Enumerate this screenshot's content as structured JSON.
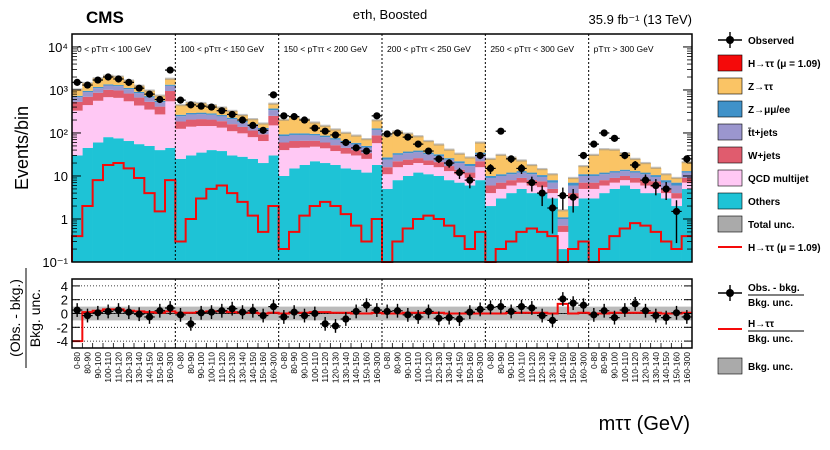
{
  "chart_data": {
    "type": "bar",
    "stacked": true,
    "header": {
      "experiment": "CMS",
      "channel": "eτh, Boosted",
      "luminosity": "35.9 fb⁻¹ (13 TeV)"
    },
    "x_axis_label": "mττ (GeV)",
    "y_axis_label_top": "Events/bin",
    "y_axis_label_bottom_numerator": "(Obs. - bkg.)",
    "y_axis_label_bottom_denominator": "Bkg. unc.",
    "y_scale_top": "log",
    "ylim_top": [
      0.1,
      20000
    ],
    "ylim_bottom": [
      -5,
      5
    ],
    "y_ticks_top": [
      "10⁻¹",
      "1",
      "10",
      "10²",
      "10³",
      "10⁴"
    ],
    "y_ticks_bottom": [
      "-4",
      "-2",
      "0",
      "2",
      "4"
    ],
    "regions": [
      {
        "label": "0 < pTττ < 100 GeV",
        "categories": [
          "0-80",
          "80-90",
          "90-100",
          "100-110",
          "110-120",
          "120-130",
          "130-140",
          "140-150",
          "150-160",
          "160-300"
        ]
      },
      {
        "label": "100 < pTττ < 150 GeV",
        "categories": [
          "0-80",
          "80-90",
          "90-100",
          "100-110",
          "110-120",
          "120-130",
          "130-140",
          "140-150",
          "150-160",
          "160-300"
        ]
      },
      {
        "label": "150 < pTττ < 200 GeV",
        "categories": [
          "0-80",
          "80-90",
          "90-100",
          "100-110",
          "110-120",
          "120-130",
          "130-140",
          "140-150",
          "150-160",
          "160-300"
        ]
      },
      {
        "label": "200 < pTττ < 250 GeV",
        "categories": [
          "0-80",
          "80-90",
          "90-100",
          "100-110",
          "110-120",
          "120-130",
          "130-140",
          "140-150",
          "150-160",
          "160-300"
        ]
      },
      {
        "label": "250 < pTττ < 300 GeV",
        "categories": [
          "0-80",
          "80-90",
          "90-100",
          "100-110",
          "110-120",
          "120-130",
          "130-140",
          "140-150",
          "150-160",
          "160-300"
        ]
      },
      {
        "label": "pTττ > 300 GeV",
        "categories": [
          "0-80",
          "80-90",
          "90-100",
          "100-110",
          "110-120",
          "120-130",
          "130-140",
          "140-150",
          "150-160",
          "160-300"
        ]
      }
    ],
    "series": [
      {
        "name": "Others",
        "color": "#1ec3d6",
        "values": [
          30,
          45,
          60,
          80,
          75,
          65,
          55,
          50,
          40,
          45,
          25,
          30,
          35,
          40,
          38,
          30,
          28,
          25,
          20,
          30,
          10,
          15,
          18,
          22,
          20,
          18,
          15,
          14,
          12,
          18,
          5,
          8,
          10,
          12,
          11,
          10,
          8,
          7,
          6,
          8,
          2,
          3,
          4,
          5,
          4,
          4,
          3,
          0.2,
          2,
          3,
          3,
          4,
          5,
          6,
          5,
          4,
          4,
          3,
          2,
          5
        ]
      },
      {
        "name": "QCD multijet",
        "color": "#ffc8f4",
        "values": [
          300,
          400,
          500,
          600,
          580,
          480,
          380,
          300,
          230,
          500,
          100,
          110,
          110,
          105,
          95,
          80,
          70,
          55,
          45,
          120,
          30,
          30,
          28,
          26,
          24,
          20,
          18,
          16,
          13,
          40,
          6,
          8,
          8,
          8,
          7,
          6,
          5,
          4,
          3,
          8,
          2,
          2,
          2,
          2,
          2,
          1.5,
          1,
          0.3,
          1,
          2,
          2,
          2,
          2,
          2,
          2,
          2,
          1.5,
          1,
          1,
          2
        ]
      },
      {
        "name": "W+jets",
        "color": "#e05c6e",
        "values": [
          200,
          250,
          300,
          330,
          320,
          280,
          230,
          180,
          140,
          400,
          60,
          65,
          65,
          60,
          55,
          50,
          40,
          34,
          28,
          100,
          20,
          20,
          20,
          18,
          16,
          14,
          12,
          10,
          9,
          30,
          5,
          6,
          6,
          6,
          5,
          5,
          4,
          3,
          3,
          6,
          2,
          2,
          2,
          2,
          2,
          2,
          1,
          0.2,
          1,
          2,
          2,
          2,
          2,
          2,
          2,
          2,
          2,
          1,
          1,
          2
        ]
      },
      {
        "name": "t̄t+jets",
        "color": "#9b96ce",
        "values": [
          150,
          200,
          240,
          260,
          250,
          220,
          180,
          140,
          110,
          300,
          60,
          65,
          65,
          60,
          55,
          50,
          40,
          34,
          28,
          90,
          25,
          25,
          24,
          22,
          20,
          18,
          16,
          14,
          12,
          30,
          8,
          9,
          10,
          10,
          9,
          8,
          7,
          6,
          5,
          10,
          3,
          3,
          3,
          3,
          3,
          2,
          2,
          0.3,
          2,
          3,
          3,
          3,
          3,
          3,
          3,
          3,
          2,
          2,
          2,
          3
        ]
      },
      {
        "name": "Z→μμ/ee",
        "color": "#4092c9",
        "values": [
          50,
          60,
          70,
          80,
          75,
          70,
          60,
          50,
          40,
          80,
          20,
          22,
          22,
          20,
          18,
          16,
          14,
          12,
          10,
          30,
          8,
          8,
          8,
          7,
          7,
          6,
          5,
          5,
          4,
          10,
          3,
          3,
          3,
          3,
          3,
          3,
          2,
          2,
          2,
          3,
          1,
          1,
          1,
          1,
          1,
          1,
          1,
          0.1,
          1,
          1,
          1,
          1,
          1,
          1,
          1,
          1,
          1,
          1,
          1,
          1
        ]
      },
      {
        "name": "Z→ττ",
        "color": "#fac465",
        "values": [
          300,
          500,
          700,
          800,
          750,
          550,
          350,
          250,
          180,
          500,
          180,
          220,
          200,
          160,
          130,
          100,
          70,
          50,
          35,
          110,
          110,
          140,
          110,
          80,
          60,
          45,
          35,
          28,
          22,
          70,
          60,
          75,
          60,
          45,
          30,
          22,
          15,
          11,
          8,
          25,
          15,
          20,
          15,
          10,
          6,
          4,
          3,
          0.5,
          2,
          6,
          20,
          30,
          28,
          20,
          12,
          8,
          5,
          3,
          2,
          8
        ]
      }
    ],
    "signal": {
      "name": "H→ττ (μ = 1.09)",
      "color": "#f50a0a",
      "values": [
        0.4,
        2,
        8,
        18,
        20,
        15,
        9,
        4,
        1.5,
        8,
        0.3,
        1,
        3,
        5,
        6,
        4,
        2.5,
        1.2,
        0.5,
        2,
        0.2,
        0.5,
        1.2,
        2,
        2.5,
        2,
        1.3,
        0.7,
        0.3,
        1,
        0.1,
        0.3,
        0.6,
        1,
        1.2,
        1,
        0.7,
        0.4,
        0.2,
        0.5,
        0.1,
        0.2,
        0.3,
        0.5,
        0.6,
        0.5,
        0.4,
        0.1,
        0.2,
        0.3,
        0.1,
        0.2,
        0.4,
        0.6,
        0.8,
        0.7,
        0.5,
        0.3,
        0.2,
        0.4
      ]
    },
    "observed": {
      "name": "Observed",
      "values": [
        1500,
        1300,
        1700,
        2000,
        1800,
        1500,
        1100,
        800,
        600,
        2900,
        580,
        450,
        420,
        400,
        330,
        270,
        200,
        150,
        115,
        770,
        250,
        240,
        200,
        130,
        110,
        90,
        60,
        45,
        38,
        250,
        95,
        100,
        80,
        55,
        38,
        25,
        20,
        12,
        8,
        30,
        15,
        110,
        25,
        15,
        7,
        4,
        1.8,
        3.5,
        3.2,
        30,
        55,
        100,
        75,
        30,
        18,
        8,
        6,
        5,
        1.5,
        25
      ]
    },
    "pull": {
      "observed": [
        0.5,
        -0.3,
        0.1,
        0.3,
        0.5,
        0.2,
        -0.1,
        -0.5,
        0.4,
        0.8,
        -0.2,
        -1.5,
        0.1,
        0.2,
        0.4,
        0.7,
        0.2,
        0.4,
        -0.3,
        1.0,
        -0.5,
        0.2,
        -0.3,
        0.0,
        -1.5,
        -1.8,
        -0.8,
        0.3,
        1.2,
        0.5,
        0.3,
        0.4,
        -0.2,
        -0.5,
        0.3,
        -0.7,
        -0.6,
        -0.8,
        0.2,
        0.6,
        0.9,
        1.0,
        0.3,
        1.0,
        0.8,
        -0.3,
        -1.0,
        2.1,
        1.5,
        1.2,
        -0.2,
        0.4,
        -0.6,
        0.5,
        1.4,
        0.4,
        -0.3,
        -0.6,
        0.1,
        -0.5
      ],
      "signal": [
        -4.0,
        0.2,
        0.4,
        0.6,
        0.6,
        0.4,
        0.3,
        0.2,
        0.1,
        0.3,
        0.1,
        0.1,
        0.2,
        0.3,
        0.3,
        0.2,
        0.1,
        0.1,
        0.0,
        0.1,
        0.0,
        0.1,
        0.1,
        0.2,
        0.2,
        0.1,
        0.1,
        0.0,
        0.0,
        0.1,
        0.0,
        0.0,
        0.1,
        0.1,
        0.1,
        0.1,
        0.0,
        0.0,
        0.0,
        0.0,
        0.0,
        0.0,
        0.1,
        0.1,
        0.1,
        0.1,
        0.0,
        1.4,
        0.0,
        0.1,
        0.0,
        0.0,
        0.1,
        0.1,
        0.1,
        0.1,
        0.1,
        0.0,
        0.0,
        0.1
      ]
    },
    "legend_top": [
      {
        "name": "Observed",
        "kind": "point"
      },
      {
        "name": "H→ττ (μ = 1.09)",
        "kind": "fill",
        "color": "#f50a0a"
      },
      {
        "name": "Z→ττ",
        "kind": "fill",
        "color": "#fac465"
      },
      {
        "name": "Z→μμ/ee",
        "kind": "fill",
        "color": "#4092c9"
      },
      {
        "name": "t̄t+jets",
        "kind": "fill",
        "color": "#9b96ce"
      },
      {
        "name": "W+jets",
        "kind": "fill",
        "color": "#e05c6e"
      },
      {
        "name": "QCD multijet",
        "kind": "fill",
        "color": "#ffc8f4"
      },
      {
        "name": "Others",
        "kind": "fill",
        "color": "#1ec3d6"
      },
      {
        "name": "Total unc.",
        "kind": "fill",
        "color": "#aaaaaa"
      },
      {
        "name": "H→ττ (μ = 1.09)",
        "kind": "line",
        "color": "#f50a0a"
      }
    ],
    "legend_bottom": [
      {
        "name": "Obs. - bkg.",
        "sub": "Bkg. unc.",
        "kind": "point"
      },
      {
        "name": "H→ττ",
        "sub": "Bkg. unc.",
        "kind": "line",
        "color": "#f50a0a"
      },
      {
        "name": "Bkg. unc.",
        "kind": "fill",
        "color": "#aaaaaa"
      }
    ]
  }
}
